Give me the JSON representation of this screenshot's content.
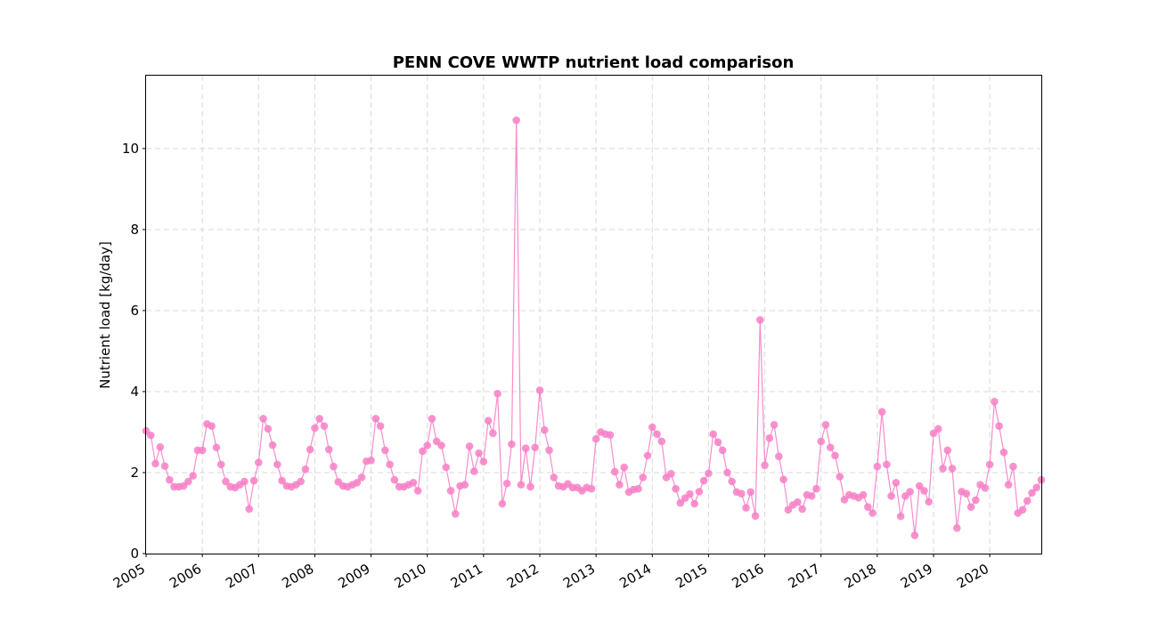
{
  "chart_data": {
    "type": "line",
    "title": "PENN COVE WWTP nutrient load comparison",
    "xlabel": "",
    "ylabel": "Nutrient load [kg/day]",
    "xlim": [
      "2005-01",
      "2020-12"
    ],
    "ylim": [
      0,
      11.8
    ],
    "x_ticks": [
      "2005",
      "2006",
      "2007",
      "2008",
      "2009",
      "2010",
      "2011",
      "2012",
      "2013",
      "2014",
      "2015",
      "2016",
      "2017",
      "2018",
      "2019",
      "2020"
    ],
    "y_ticks": [
      0,
      2,
      4,
      6,
      8,
      10
    ],
    "grid": true,
    "line_style": "line with circle markers",
    "series": [
      {
        "color": "#f77fc6",
        "x": [
          "2005-01",
          "2005-02",
          "2005-03",
          "2005-04",
          "2005-05",
          "2005-06",
          "2005-07",
          "2005-08",
          "2005-09",
          "2005-10",
          "2005-11",
          "2005-12",
          "2006-01",
          "2006-02",
          "2006-03",
          "2006-04",
          "2006-05",
          "2006-06",
          "2006-07",
          "2006-08",
          "2006-09",
          "2006-10",
          "2006-11",
          "2006-12",
          "2007-01",
          "2007-02",
          "2007-03",
          "2007-04",
          "2007-05",
          "2007-06",
          "2007-07",
          "2007-08",
          "2007-09",
          "2007-10",
          "2007-11",
          "2007-12",
          "2008-01",
          "2008-02",
          "2008-03",
          "2008-04",
          "2008-05",
          "2008-06",
          "2008-07",
          "2008-08",
          "2008-09",
          "2008-10",
          "2008-11",
          "2008-12",
          "2009-01",
          "2009-02",
          "2009-03",
          "2009-04",
          "2009-05",
          "2009-06",
          "2009-07",
          "2009-08",
          "2009-09",
          "2009-10",
          "2009-11",
          "2009-12",
          "2010-01",
          "2010-02",
          "2010-03",
          "2010-04",
          "2010-05",
          "2010-06",
          "2010-07",
          "2010-08",
          "2010-09",
          "2010-10",
          "2010-11",
          "2010-12",
          "2011-01",
          "2011-02",
          "2011-03",
          "2011-04",
          "2011-05",
          "2011-06",
          "2011-07",
          "2011-08",
          "2011-09",
          "2011-10",
          "2011-11",
          "2011-12",
          "2012-01",
          "2012-02",
          "2012-03",
          "2012-04",
          "2012-05",
          "2012-06",
          "2012-07",
          "2012-08",
          "2012-09",
          "2012-10",
          "2012-11",
          "2012-12",
          "2013-01",
          "2013-02",
          "2013-03",
          "2013-04",
          "2013-05",
          "2013-06",
          "2013-07",
          "2013-08",
          "2013-09",
          "2013-10",
          "2013-11",
          "2013-12",
          "2014-01",
          "2014-02",
          "2014-03",
          "2014-04",
          "2014-05",
          "2014-06",
          "2014-07",
          "2014-08",
          "2014-09",
          "2014-10",
          "2014-11",
          "2014-12",
          "2015-01",
          "2015-02",
          "2015-03",
          "2015-04",
          "2015-05",
          "2015-06",
          "2015-07",
          "2015-08",
          "2015-09",
          "2015-10",
          "2015-11",
          "2015-12",
          "2016-01",
          "2016-02",
          "2016-03",
          "2016-04",
          "2016-05",
          "2016-06",
          "2016-07",
          "2016-08",
          "2016-09",
          "2016-10",
          "2016-11",
          "2016-12",
          "2017-01",
          "2017-02",
          "2017-03",
          "2017-04",
          "2017-05",
          "2017-06",
          "2017-07",
          "2017-08",
          "2017-09",
          "2017-10",
          "2017-11",
          "2017-12",
          "2018-01",
          "2018-02",
          "2018-03",
          "2018-04",
          "2018-05",
          "2018-06",
          "2018-07",
          "2018-08",
          "2018-09",
          "2018-10",
          "2018-11",
          "2018-12",
          "2019-01",
          "2019-02",
          "2019-03",
          "2019-04",
          "2019-05",
          "2019-06",
          "2019-07",
          "2019-08",
          "2019-09",
          "2019-10",
          "2019-11",
          "2019-12",
          "2020-01",
          "2020-02",
          "2020-03",
          "2020-04",
          "2020-05",
          "2020-06",
          "2020-07",
          "2020-08",
          "2020-09",
          "2020-10",
          "2020-11",
          "2020-12"
        ],
        "y": [
          3.03,
          2.92,
          2.22,
          2.63,
          2.16,
          1.82,
          1.65,
          1.65,
          1.67,
          1.78,
          1.92,
          2.55,
          2.55,
          3.2,
          3.15,
          2.62,
          2.2,
          1.78,
          1.65,
          1.63,
          1.7,
          1.78,
          1.1,
          1.8,
          2.25,
          3.33,
          3.08,
          2.68,
          2.2,
          1.8,
          1.67,
          1.65,
          1.7,
          1.78,
          2.08,
          2.57,
          3.1,
          3.33,
          3.15,
          2.57,
          2.15,
          1.77,
          1.67,
          1.65,
          1.7,
          1.75,
          1.88,
          2.28,
          2.3,
          3.33,
          3.15,
          2.55,
          2.2,
          1.82,
          1.65,
          1.65,
          1.7,
          1.75,
          1.55,
          2.53,
          2.67,
          3.33,
          2.77,
          2.67,
          2.13,
          1.55,
          0.98,
          1.67,
          1.7,
          2.65,
          2.03,
          2.48,
          2.27,
          3.28,
          2.97,
          3.95,
          1.23,
          1.73,
          2.7,
          10.7,
          1.7,
          2.6,
          1.65,
          2.62,
          4.03,
          3.05,
          2.55,
          1.88,
          1.67,
          1.65,
          1.72,
          1.63,
          1.63,
          1.55,
          1.63,
          1.6,
          2.83,
          3.0,
          2.95,
          2.93,
          2.02,
          1.7,
          2.13,
          1.52,
          1.58,
          1.6,
          1.88,
          2.42,
          3.12,
          2.95,
          2.77,
          1.88,
          1.97,
          1.6,
          1.25,
          1.37,
          1.47,
          1.23,
          1.53,
          1.8,
          1.98,
          2.95,
          2.75,
          2.55,
          2.0,
          1.78,
          1.52,
          1.48,
          1.13,
          1.52,
          0.93,
          5.77,
          2.18,
          2.85,
          3.18,
          2.4,
          1.83,
          1.08,
          1.2,
          1.27,
          1.1,
          1.45,
          1.42,
          1.6,
          2.77,
          3.18,
          2.62,
          2.42,
          1.9,
          1.33,
          1.45,
          1.42,
          1.38,
          1.45,
          1.15,
          1.0,
          2.15,
          3.5,
          2.2,
          1.42,
          1.75,
          0.92,
          1.42,
          1.53,
          0.45,
          1.67,
          1.55,
          1.28,
          2.97,
          3.08,
          2.1,
          2.55,
          2.1,
          0.63,
          1.53,
          1.48,
          1.15,
          1.32,
          1.7,
          1.62,
          2.2,
          3.75,
          3.15,
          2.5,
          1.7,
          2.15,
          1.0,
          1.08,
          1.3,
          1.5,
          1.63,
          1.82
        ]
      }
    ]
  }
}
